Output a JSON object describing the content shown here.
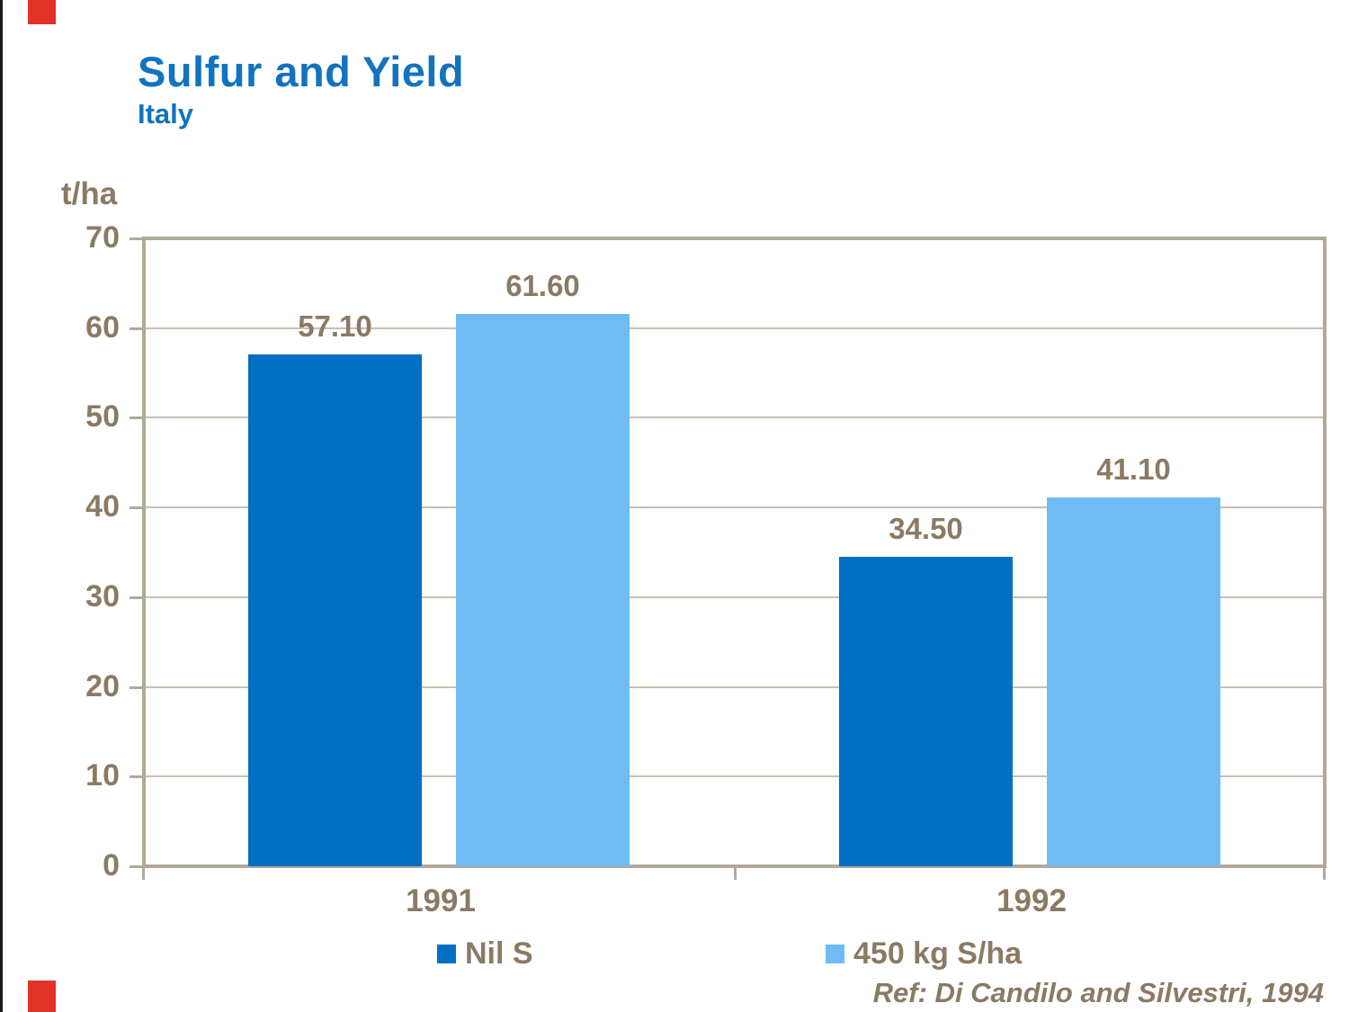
{
  "header": {
    "title": "Sulfur and Yield",
    "subtitle": "Italy"
  },
  "footer": {
    "reference": "Ref: Di Candilo and Silvestri, 1994"
  },
  "chart_data": {
    "type": "bar",
    "title": "Sulfur and Yield",
    "subtitle": "Italy",
    "ylabel": "t/ha",
    "xlabel": "",
    "ylim": [
      0,
      70
    ],
    "ytick_step": 10,
    "ytick_labels": [
      "70",
      "60",
      "50",
      "40",
      "30",
      "20",
      "10",
      "0"
    ],
    "categories": [
      "1991",
      "1992"
    ],
    "series": [
      {
        "name": "Nil S",
        "color": "#0070c3",
        "values": [
          57.1,
          34.5
        ],
        "value_labels": [
          "57.10",
          "34.50"
        ]
      },
      {
        "name": "450 kg S/ha",
        "color": "#6fbcf5",
        "values": [
          61.6,
          41.1
        ],
        "value_labels": [
          "61.60",
          "41.10"
        ]
      }
    ],
    "grid": true,
    "legend_position": "bottom",
    "annotation": "Ref: Di Candilo and Silvestri, 1994"
  },
  "colors": {
    "title_blue": "#1273bf",
    "text_brown": "#8a7a64",
    "bar_dark_blue": "#0070c3",
    "bar_light_blue": "#6fbcf5",
    "axis_frame_tan": "#b2a89b",
    "gridline": "#c9bfb2",
    "page_border_black": "#1a1a1a",
    "corner_mark_red": "#e23227"
  }
}
